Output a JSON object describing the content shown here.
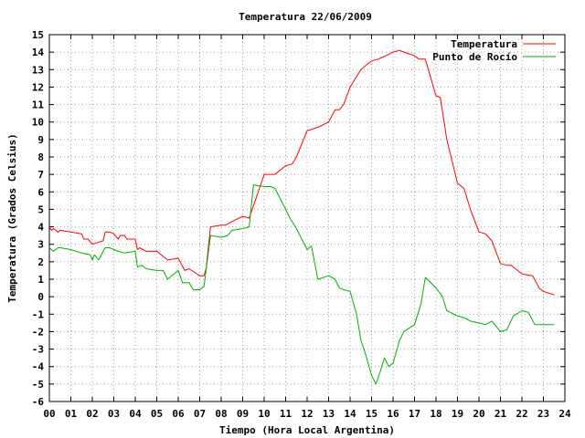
{
  "chart_data": {
    "type": "line",
    "title": "Temperatura 22/06/2009",
    "xlabel": "Tiempo (Hora Local Argentina)",
    "ylabel": "Temperatura (Grados Celsius)",
    "xlim": [
      0,
      24
    ],
    "ylim": [
      -6,
      15
    ],
    "grid": true,
    "legend_position": "top-right",
    "x_tick_labels": [
      "00",
      "01",
      "02",
      "03",
      "04",
      "05",
      "06",
      "07",
      "08",
      "09",
      "10",
      "11",
      "12",
      "13",
      "14",
      "15",
      "16",
      "17",
      "18",
      "19",
      "20",
      "21",
      "22",
      "23",
      "24"
    ],
    "y_tick_values": [
      -6,
      -5,
      -4,
      -3,
      -2,
      -1,
      0,
      1,
      2,
      3,
      4,
      5,
      6,
      7,
      8,
      9,
      10,
      11,
      12,
      13,
      14,
      15
    ],
    "series": [
      {
        "name": "Temperatura",
        "color": "#ff0000",
        "x": [
          0.0,
          0.1,
          0.2,
          0.4,
          0.5,
          1.0,
          1.5,
          1.6,
          1.8,
          2.0,
          2.5,
          2.6,
          2.8,
          3.0,
          3.2,
          3.3,
          3.5,
          3.6,
          4.0,
          4.1,
          4.2,
          4.5,
          5.0,
          5.3,
          5.5,
          6.0,
          6.3,
          6.5,
          7.0,
          7.2,
          7.3,
          7.5,
          8.0,
          8.2,
          8.5,
          9.0,
          9.3,
          9.5,
          10.0,
          10.3,
          10.5,
          11.0,
          11.3,
          11.5,
          12.0,
          12.5,
          13.0,
          13.3,
          13.5,
          13.7,
          14.0,
          14.3,
          14.5,
          15.0,
          15.3,
          15.5,
          16.0,
          16.3,
          16.5,
          17.0,
          17.2,
          17.5,
          18.0,
          18.2,
          18.5,
          19.0,
          19.3,
          19.6,
          20.0,
          20.3,
          20.6,
          21.0,
          21.3,
          21.5,
          22.0,
          22.5,
          22.8,
          23.0,
          23.5
        ],
        "y": [
          4.0,
          3.8,
          3.9,
          3.7,
          3.8,
          3.7,
          3.6,
          3.3,
          3.3,
          3.0,
          3.2,
          3.7,
          3.7,
          3.6,
          3.3,
          3.5,
          3.5,
          3.3,
          3.3,
          2.7,
          2.8,
          2.6,
          2.6,
          2.3,
          2.1,
          2.2,
          1.5,
          1.6,
          1.2,
          1.2,
          1.6,
          4.0,
          4.1,
          4.1,
          4.3,
          4.6,
          4.5,
          5.2,
          7.0,
          7.0,
          7.0,
          7.5,
          7.6,
          8.0,
          9.5,
          9.7,
          10.0,
          10.7,
          10.7,
          11.0,
          12.0,
          12.6,
          13.0,
          13.5,
          13.6,
          13.7,
          14.0,
          14.1,
          14.0,
          13.8,
          13.6,
          13.6,
          11.5,
          11.4,
          9.0,
          6.5,
          6.2,
          5.0,
          3.7,
          3.6,
          3.2,
          1.9,
          1.8,
          1.8,
          1.3,
          1.2,
          0.5,
          0.3,
          0.1
        ]
      },
      {
        "name": "Punto de Rocío",
        "color": "#00b000",
        "x": [
          0.0,
          0.2,
          0.4,
          0.5,
          1.0,
          1.5,
          1.9,
          2.0,
          2.1,
          2.3,
          2.5,
          2.6,
          2.8,
          3.0,
          3.2,
          3.5,
          4.0,
          4.1,
          4.3,
          4.5,
          5.0,
          5.3,
          5.5,
          6.0,
          6.2,
          6.5,
          6.7,
          7.0,
          7.2,
          7.5,
          8.0,
          8.3,
          8.5,
          9.0,
          9.3,
          9.5,
          10.0,
          10.3,
          10.5,
          11.0,
          11.2,
          11.5,
          12.0,
          12.2,
          12.5,
          13.0,
          13.3,
          13.5,
          13.7,
          14.0,
          14.3,
          14.5,
          14.7,
          15.0,
          15.2,
          15.4,
          15.6,
          15.8,
          16.0,
          16.3,
          16.5,
          17.0,
          17.3,
          17.5,
          17.6,
          18.0,
          18.3,
          18.5,
          19.0,
          19.3,
          19.6,
          20.0,
          20.3,
          20.6,
          21.0,
          21.3,
          21.6,
          22.0,
          22.3,
          22.6,
          23.0,
          23.5
        ],
        "y": [
          2.8,
          2.6,
          2.8,
          2.8,
          2.7,
          2.5,
          2.4,
          2.1,
          2.4,
          2.1,
          2.6,
          2.8,
          2.8,
          2.7,
          2.6,
          2.5,
          2.6,
          1.7,
          1.8,
          1.6,
          1.5,
          1.5,
          1.0,
          1.5,
          0.8,
          0.8,
          0.4,
          0.4,
          0.6,
          3.5,
          3.4,
          3.5,
          3.8,
          3.9,
          4.0,
          6.4,
          6.3,
          6.3,
          6.2,
          5.0,
          4.5,
          3.9,
          2.7,
          2.9,
          1.0,
          1.2,
          1.0,
          0.5,
          0.4,
          0.3,
          -1.0,
          -2.5,
          -3.2,
          -4.5,
          -5.0,
          -4.3,
          -3.5,
          -4.0,
          -3.8,
          -2.5,
          -2.0,
          -1.6,
          -0.4,
          1.1,
          1.0,
          0.5,
          0.0,
          -0.8,
          -1.1,
          -1.2,
          -1.4,
          -1.5,
          -1.6,
          -1.4,
          -2.0,
          -1.9,
          -1.1,
          -0.8,
          -0.9,
          -1.6,
          -1.6,
          -1.6
        ]
      }
    ]
  }
}
